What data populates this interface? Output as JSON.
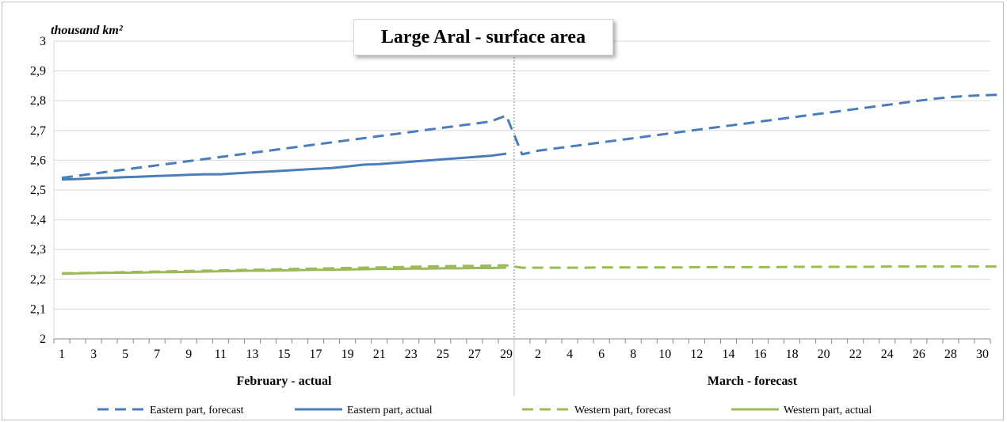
{
  "chart_data": {
    "type": "line",
    "title": "Large Aral - surface area",
    "ylabel": "thousand km²",
    "ylim": [
      2,
      3
    ],
    "y_ticks": [
      "2",
      "2,1",
      "2,2",
      "2,3",
      "2,4",
      "2,5",
      "2,6",
      "2,7",
      "2,8",
      "2,9",
      "3"
    ],
    "grid": true,
    "legend_position": "bottom",
    "groups": [
      {
        "label": "February - actual",
        "days": [
          1,
          2,
          3,
          4,
          5,
          6,
          7,
          8,
          9,
          10,
          11,
          12,
          13,
          14,
          15,
          16,
          17,
          18,
          19,
          20,
          21,
          22,
          23,
          24,
          25,
          26,
          27,
          28,
          29
        ]
      },
      {
        "label": "March - forecast",
        "days": [
          1,
          2,
          3,
          4,
          5,
          6,
          7,
          8,
          9,
          10,
          11,
          12,
          13,
          14,
          15,
          16,
          17,
          18,
          19,
          20,
          21,
          22,
          23,
          24,
          25,
          26,
          27,
          28,
          29,
          30
        ]
      }
    ],
    "x_tick_labels": [
      "1",
      "3",
      "5",
      "7",
      "9",
      "11",
      "13",
      "15",
      "17",
      "19",
      "21",
      "23",
      "25",
      "27",
      "29",
      "2",
      "4",
      "6",
      "8",
      "10",
      "12",
      "14",
      "16",
      "18",
      "20",
      "22",
      "24",
      "26",
      "28",
      "30"
    ],
    "series": [
      {
        "name": "Eastern part, forecast",
        "color": "#4a7ebb",
        "style": "dashed",
        "values": [
          2.541,
          2.548,
          2.555,
          2.562,
          2.569,
          2.576,
          2.583,
          2.59,
          2.597,
          2.604,
          2.611,
          2.618,
          2.625,
          2.632,
          2.639,
          2.646,
          2.653,
          2.66,
          2.667,
          2.674,
          2.681,
          2.688,
          2.695,
          2.702,
          2.709,
          2.716,
          2.723,
          2.73,
          2.75,
          2.62,
          2.632,
          2.639,
          2.646,
          2.653,
          2.66,
          2.667,
          2.674,
          2.681,
          2.688,
          2.695,
          2.702,
          2.709,
          2.716,
          2.723,
          2.73,
          2.737,
          2.744,
          2.751,
          2.758,
          2.765,
          2.772,
          2.779,
          2.786,
          2.793,
          2.8,
          2.807,
          2.812,
          2.816,
          2.818,
          2.82
        ]
      },
      {
        "name": "Eastern part, actual",
        "color": "#4a7ebb",
        "style": "solid",
        "values": [
          2.535,
          2.537,
          2.539,
          2.541,
          2.543,
          2.545,
          2.547,
          2.549,
          2.551,
          2.553,
          2.553,
          2.556,
          2.559,
          2.562,
          2.565,
          2.568,
          2.571,
          2.574,
          2.579,
          2.585,
          2.587,
          2.591,
          2.595,
          2.599,
          2.603,
          2.607,
          2.611,
          2.615,
          2.622,
          null,
          null,
          null,
          null,
          null,
          null,
          null,
          null,
          null,
          null,
          null,
          null,
          null,
          null,
          null,
          null,
          null,
          null,
          null,
          null,
          null,
          null,
          null,
          null,
          null,
          null,
          null,
          null,
          null,
          null,
          null
        ]
      },
      {
        "name": "Western part, forecast",
        "color": "#9bbb59",
        "style": "dashed",
        "values": [
          2.22,
          2.221,
          2.222,
          2.223,
          2.224,
          2.225,
          2.226,
          2.227,
          2.228,
          2.229,
          2.23,
          2.231,
          2.232,
          2.233,
          2.234,
          2.235,
          2.236,
          2.237,
          2.238,
          2.239,
          2.24,
          2.241,
          2.242,
          2.243,
          2.244,
          2.245,
          2.245,
          2.246,
          2.247,
          2.239,
          2.239,
          2.239,
          2.239,
          2.239,
          2.24,
          2.24,
          2.24,
          2.24,
          2.24,
          2.24,
          2.241,
          2.241,
          2.241,
          2.241,
          2.241,
          2.241,
          2.242,
          2.242,
          2.242,
          2.242,
          2.242,
          2.242,
          2.243,
          2.243,
          2.243,
          2.243,
          2.243,
          2.243,
          2.243,
          2.243
        ]
      },
      {
        "name": "Western part, actual",
        "color": "#9bbb59",
        "style": "solid",
        "values": [
          2.219,
          2.22,
          2.221,
          2.222,
          2.222,
          2.223,
          2.224,
          2.224,
          2.225,
          2.226,
          2.227,
          2.228,
          2.229,
          2.229,
          2.23,
          2.231,
          2.232,
          2.232,
          2.233,
          2.234,
          2.235,
          2.235,
          2.236,
          2.236,
          2.237,
          2.237,
          2.238,
          2.238,
          2.239,
          null,
          null,
          null,
          null,
          null,
          null,
          null,
          null,
          null,
          null,
          null,
          null,
          null,
          null,
          null,
          null,
          null,
          null,
          null,
          null,
          null,
          null,
          null,
          null,
          null,
          null,
          null,
          null,
          null,
          null,
          null
        ]
      }
    ]
  }
}
